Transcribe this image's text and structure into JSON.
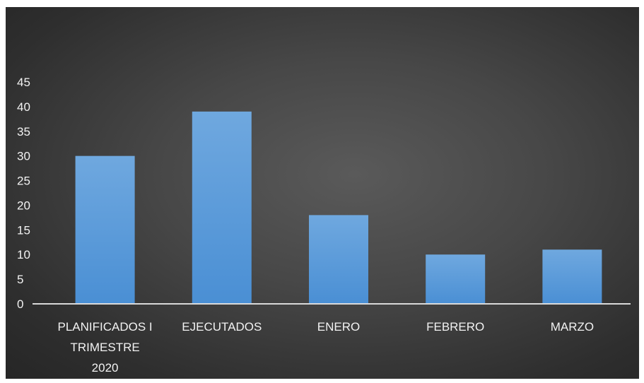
{
  "chart_data": {
    "type": "bar",
    "title": "",
    "xlabel": "",
    "ylabel": "",
    "categories": [
      [
        "PLANIFICADOS I",
        "TRIMESTRE",
        "2020"
      ],
      [
        "EJECUTADOS"
      ],
      [
        "ENERO"
      ],
      [
        "FEBRERO"
      ],
      [
        "MARZO"
      ]
    ],
    "values": [
      30,
      39,
      18,
      10,
      11
    ],
    "ylim": [
      0,
      45
    ],
    "yticks": [
      0,
      5,
      10,
      15,
      20,
      25,
      30,
      35,
      40,
      45
    ],
    "grid": false,
    "legend": "none",
    "colors": {
      "bar_top": "#6fa8df",
      "bar_bottom": "#4a8fd4",
      "axis": "#d9d9d9",
      "text": "#f2f2f2",
      "background_center": "#5a5a5a",
      "background_edge": "#262626"
    }
  }
}
